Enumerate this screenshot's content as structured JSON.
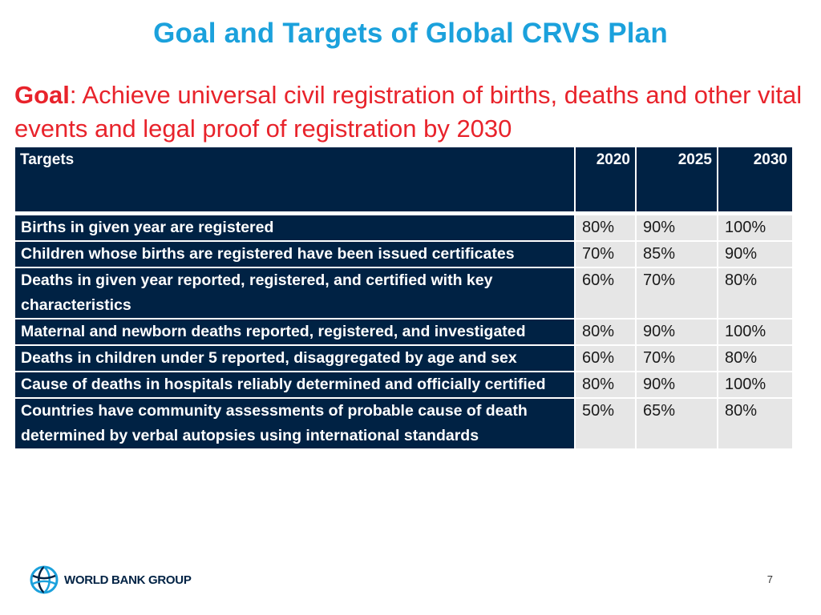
{
  "slide": {
    "title": "Goal and Targets of Global CRVS Plan",
    "goal_label": "Goal",
    "goal_text": ": Achieve universal civil registration of births, deaths and other vital events and legal proof of registration by 2030",
    "page_number": "7"
  },
  "table": {
    "headers": [
      "Targets",
      "2020",
      "2025",
      "2030"
    ],
    "rows": [
      {
        "target": "Births in given year are registered",
        "v2020": "80%",
        "v2025": "90%",
        "v2030": "100%"
      },
      {
        "target": "Children whose births are registered have been issued certificates",
        "v2020": "70%",
        "v2025": "85%",
        "v2030": "90%"
      },
      {
        "target": "Deaths in given year reported, registered, and certified with key characteristics",
        "v2020": "60%",
        "v2025": "70%",
        "v2030": "80%"
      },
      {
        "target": "Maternal and newborn deaths reported, registered, and investigated",
        "v2020": "80%",
        "v2025": "90%",
        "v2030": "100%"
      },
      {
        "target": "Deaths in children under 5 reported, disaggregated by age and sex",
        "v2020": "60%",
        "v2025": "70%",
        "v2030": "80%"
      },
      {
        "target": "Cause of deaths in hospitals reliably determined and officially certified",
        "v2020": "80%",
        "v2025": "90%",
        "v2030": "100%"
      },
      {
        "target": "Countries have community assessments of probable cause of death determined by verbal autopsies using international standards",
        "v2020": "50%",
        "v2025": "65%",
        "v2030": "80%"
      }
    ]
  },
  "footer": {
    "brand": "WORLD BANK GROUP",
    "logo_icon": "globe-icon",
    "brand_color": "#002244"
  },
  "colors": {
    "title": "#1ba1dc",
    "goal": "#e8232b",
    "header_bg": "#002244",
    "value_bg": "#e6e6e6"
  }
}
